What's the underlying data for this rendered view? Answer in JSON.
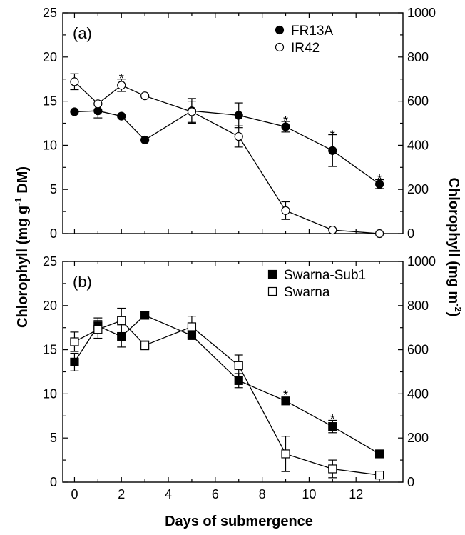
{
  "chart_data": [
    {
      "type": "line",
      "panel_label": "(a)",
      "xlim": [
        -0.5,
        14
      ],
      "ylim": [
        0,
        25
      ],
      "yticks": [
        0,
        5,
        10,
        15,
        20,
        25
      ],
      "y2lim": [
        0,
        1000
      ],
      "y2ticks": [
        0,
        200,
        400,
        600,
        800,
        1000
      ],
      "legend_position": "top-right",
      "series": [
        {
          "name": "FR13A",
          "marker": "filled-circle",
          "x": [
            0,
            1,
            2,
            3,
            5,
            7,
            9,
            11,
            13
          ],
          "y": [
            13.8,
            13.9,
            13.3,
            10.6,
            13.9,
            13.4,
            12.1,
            9.4,
            5.6
          ],
          "err": [
            0,
            0.8,
            0,
            0,
            1.4,
            1.4,
            0.6,
            1.8,
            0.5
          ]
        },
        {
          "name": "IR42",
          "marker": "open-circle",
          "x": [
            0,
            1,
            2,
            3,
            5,
            7,
            9,
            11,
            13
          ],
          "y": [
            17.2,
            14.7,
            16.8,
            15.6,
            13.8,
            11.0,
            2.6,
            0.4,
            0.0
          ],
          "err": [
            0.9,
            0,
            0.7,
            0,
            1.2,
            1.2,
            1.0,
            0,
            0
          ]
        }
      ],
      "significance_marks": [
        {
          "x": 2,
          "y": 17.7,
          "text": "*"
        },
        {
          "x": 9,
          "y": 12.9,
          "text": "*"
        },
        {
          "x": 11,
          "y": 11.3,
          "text": "*"
        },
        {
          "x": 13,
          "y": 6.3,
          "text": "*"
        }
      ]
    },
    {
      "type": "line",
      "panel_label": "(b)",
      "xlim": [
        -0.5,
        14
      ],
      "ylim": [
        0,
        25
      ],
      "yticks": [
        0,
        5,
        10,
        15,
        20,
        25
      ],
      "y2lim": [
        0,
        1000
      ],
      "y2ticks": [
        0,
        200,
        400,
        600,
        800,
        1000
      ],
      "xticks": [
        0,
        2,
        4,
        6,
        8,
        10,
        12
      ],
      "legend_position": "top-right",
      "series": [
        {
          "name": "Swarna-Sub1",
          "marker": "filled-square",
          "x": [
            0,
            1,
            2,
            3,
            5,
            7,
            9,
            11,
            13
          ],
          "y": [
            13.6,
            17.7,
            16.5,
            18.9,
            16.6,
            11.5,
            9.2,
            6.3,
            3.2
          ],
          "err": [
            1.0,
            0.9,
            1.2,
            0.4,
            0,
            0.8,
            0,
            0.7,
            0
          ]
        },
        {
          "name": "Swarna",
          "marker": "open-square",
          "x": [
            0,
            1,
            2,
            3,
            5,
            7,
            9,
            11,
            13
          ],
          "y": [
            15.9,
            17.3,
            18.3,
            15.5,
            17.6,
            13.2,
            3.2,
            1.5,
            0.8
          ],
          "err": [
            1.1,
            1.0,
            1.4,
            0.5,
            1.2,
            1.2,
            2.0,
            1.0,
            0
          ]
        }
      ],
      "significance_marks": [
        {
          "x": 9,
          "y": 10.0,
          "text": "*"
        },
        {
          "x": 11,
          "y": 7.3,
          "text": "*"
        }
      ]
    }
  ],
  "ylabel_left": "Chlorophyll (mg g-1 DM)",
  "ylabel_left_parts": {
    "pre": "Chlorophyll (mg g",
    "sup": "-1",
    "post": " DM)"
  },
  "ylabel_right": "Chlorophyll (mg m-2)",
  "ylabel_right_parts": {
    "pre": "Chlorophyll (mg m",
    "sup": "-2",
    "post": ")"
  },
  "xlabel": "Days of submergence"
}
